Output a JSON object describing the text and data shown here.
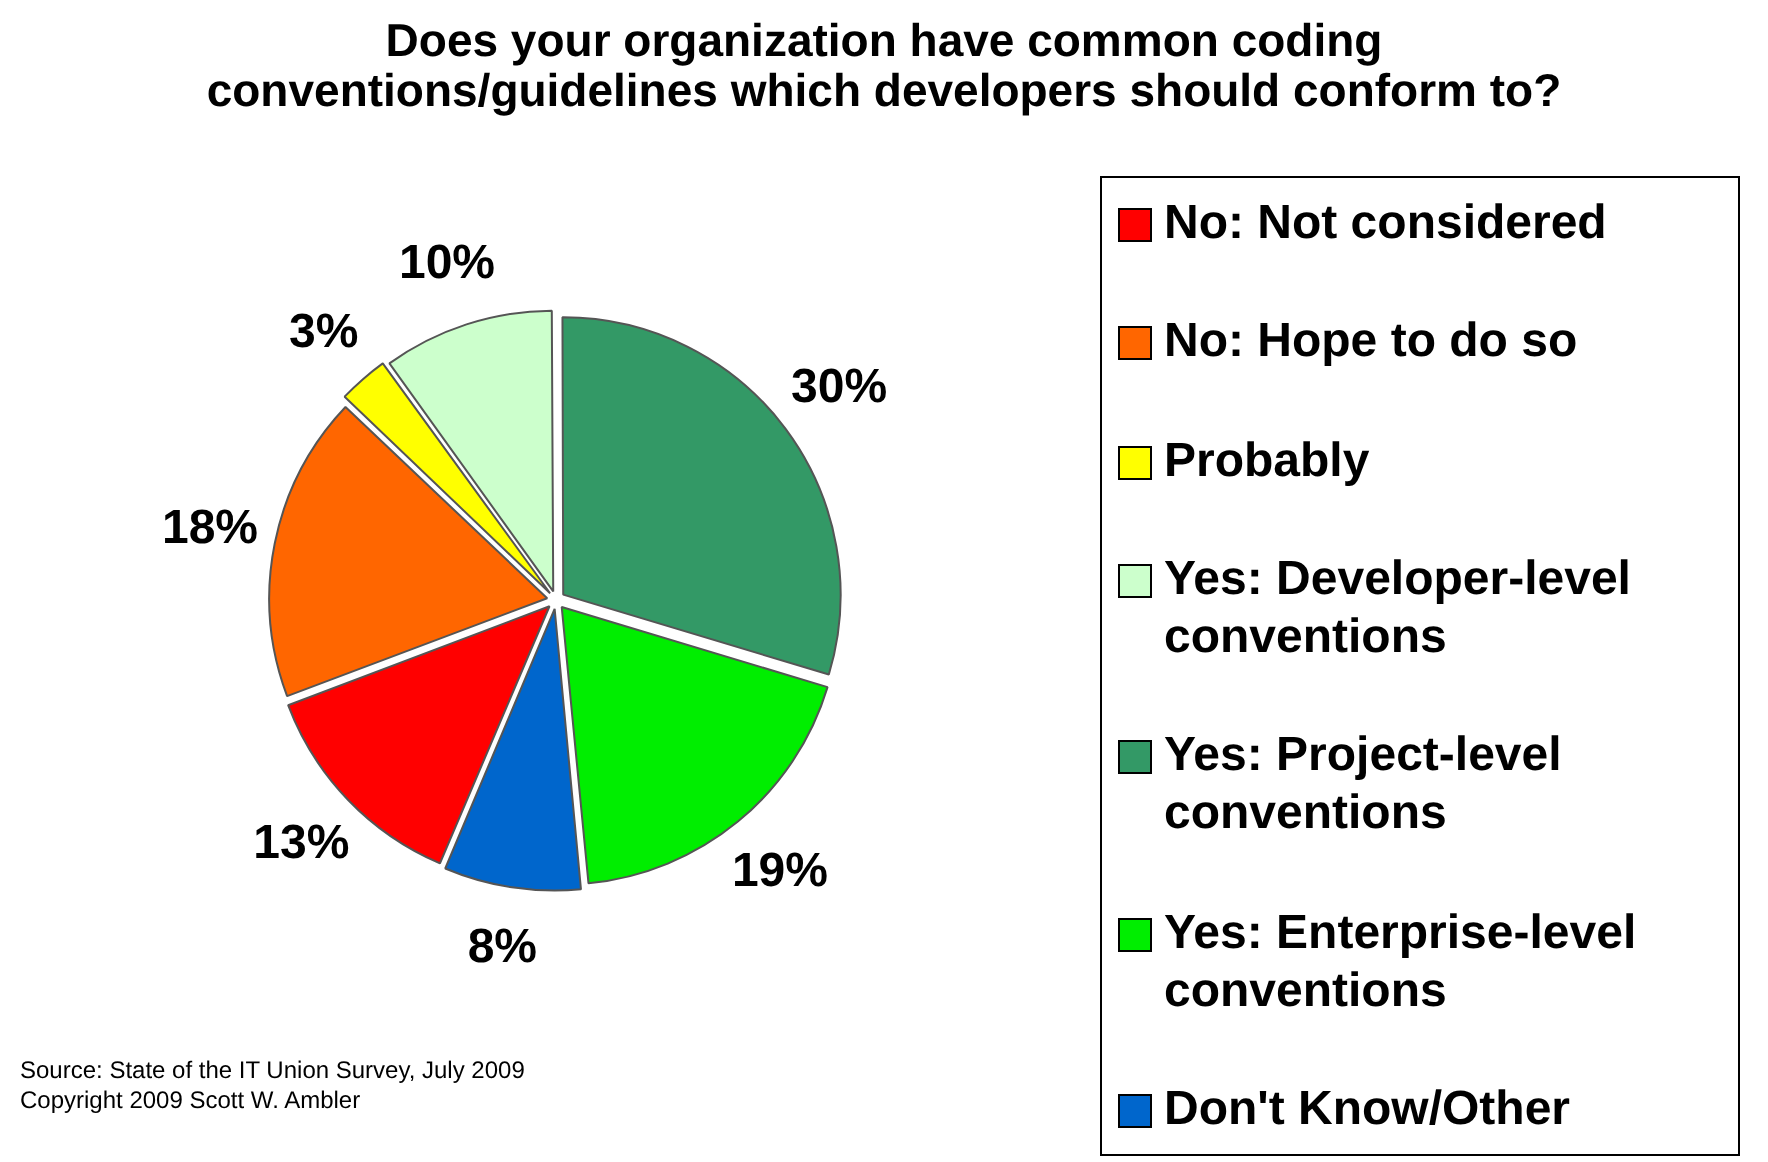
{
  "chart_data": {
    "type": "pie",
    "title": "Does your organization have common coding conventions/guidelines which developers should conform to?",
    "categories": [
      "No: Not considered",
      "No: Hope to do so",
      "Probably",
      "Yes: Developer-level conventions",
      "Yes: Project-level conventions",
      "Yes: Enterprise-level conventions",
      "Don't Know/Other"
    ],
    "values": [
      13,
      18,
      3,
      10,
      30,
      19,
      8
    ],
    "value_labels": [
      "13%",
      "18%",
      "3%",
      "10%",
      "30%",
      "19%",
      "8%"
    ],
    "colors": [
      "#ff0000",
      "#ff6600",
      "#ffff00",
      "#ccffcc",
      "#339966",
      "#00ee00",
      "#0066cc"
    ],
    "legend": "right",
    "annotations": [
      "Source: State of the IT Union Survey, July 2009",
      "Copyright 2009 Scott W. Ambler"
    ]
  }
}
